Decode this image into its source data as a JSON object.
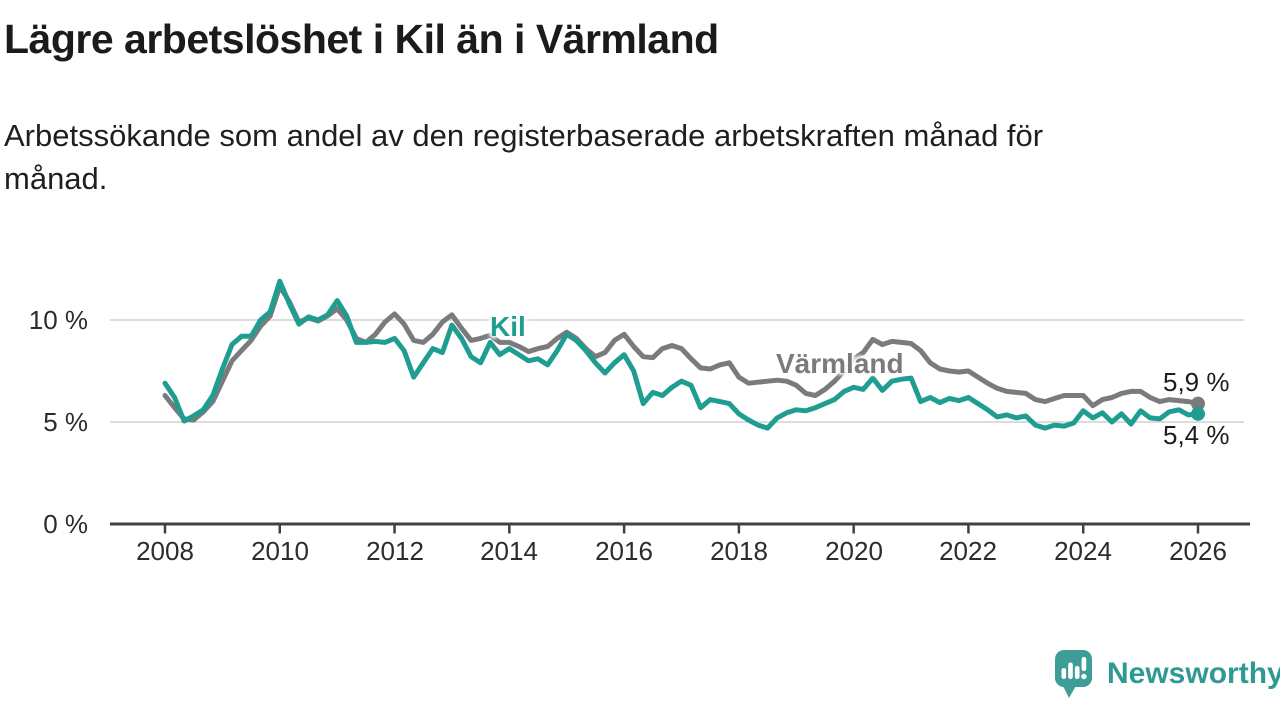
{
  "header": {
    "title": "Lägre arbetslöshet i Kil än i Värmland",
    "subtitle": "Arbetssökande som andel av den registerbaserade arbetskraften månad för månad.",
    "subtitle_lines": [
      "Arbetssökande som andel av den registerbaserade arbetskraften månad för",
      "månad."
    ]
  },
  "chart_data": {
    "type": "line",
    "title": "Lägre arbetslöshet i Kil än i Värmland",
    "xlabel": "",
    "ylabel": "",
    "unit": "%",
    "grid": "horizontal-only",
    "legend_position": "inline-labels",
    "x_axis": {
      "ticks": [
        2008,
        2010,
        2012,
        2014,
        2016,
        2018,
        2020,
        2022,
        2024,
        2026
      ],
      "tick_labels": [
        "2008",
        "2010",
        "2012",
        "2014",
        "2016",
        "2018",
        "2020",
        "2022",
        "2024",
        "2026"
      ],
      "range": [
        2007.0,
        2026.9
      ]
    },
    "y_axis": {
      "ticks": [
        0,
        5,
        10
      ],
      "tick_labels": [
        "0 %",
        "5 %",
        "10 %"
      ],
      "gridline_values": [
        5,
        10
      ],
      "range": [
        0,
        13.4
      ]
    },
    "x_start": 2008.0,
    "x_step": 0.1666667,
    "x_end": 2026.0,
    "series": [
      {
        "name": "Värmland",
        "color": "#7b7b7d",
        "end_label": "5,9 %",
        "end_value": 5.9,
        "values": [
          6.3,
          5.7,
          5.15,
          5.1,
          5.5,
          6.0,
          7.0,
          8.0,
          8.5,
          9.0,
          9.7,
          10.2,
          11.65,
          10.9,
          9.9,
          10.1,
          9.95,
          10.2,
          10.55,
          10.0,
          9.1,
          8.9,
          9.3,
          9.9,
          10.3,
          9.8,
          9.0,
          8.9,
          9.3,
          9.9,
          10.25,
          9.6,
          9.0,
          9.1,
          9.25,
          8.9,
          8.9,
          8.7,
          8.45,
          8.6,
          8.7,
          9.1,
          9.4,
          9.1,
          8.6,
          8.2,
          8.4,
          9.0,
          9.3,
          8.7,
          8.2,
          8.15,
          8.6,
          8.75,
          8.6,
          8.1,
          7.65,
          7.6,
          7.8,
          7.9,
          7.2,
          6.9,
          6.95,
          7.0,
          7.05,
          7.0,
          6.8,
          6.4,
          6.3,
          6.6,
          7.0,
          7.5,
          8.1,
          8.4,
          9.05,
          8.8,
          8.95,
          8.9,
          8.85,
          8.5,
          7.9,
          7.6,
          7.5,
          7.45,
          7.5,
          7.2,
          6.9,
          6.65,
          6.5,
          6.45,
          6.4,
          6.1,
          6.0,
          6.15,
          6.3,
          6.3,
          6.3,
          5.8,
          6.1,
          6.2,
          6.4,
          6.5,
          6.5,
          6.2,
          6.0,
          6.1,
          6.05,
          6.0,
          5.9
        ]
      },
      {
        "name": "Kil",
        "color": "#1f9d90",
        "end_label": "5,4 %",
        "end_value": 5.4,
        "values": [
          6.9,
          6.2,
          5.05,
          5.3,
          5.6,
          6.3,
          7.6,
          8.8,
          9.2,
          9.2,
          10.0,
          10.4,
          11.9,
          10.8,
          9.8,
          10.15,
          10.0,
          10.25,
          10.95,
          10.2,
          8.9,
          8.9,
          8.95,
          8.9,
          9.1,
          8.5,
          7.2,
          7.9,
          8.6,
          8.4,
          9.75,
          9.1,
          8.2,
          7.9,
          8.9,
          8.3,
          8.6,
          8.3,
          8.0,
          8.1,
          7.8,
          8.5,
          9.3,
          9.0,
          8.5,
          7.9,
          7.4,
          7.9,
          8.3,
          7.5,
          5.9,
          6.45,
          6.3,
          6.7,
          7.0,
          6.8,
          5.7,
          6.1,
          6.0,
          5.9,
          5.4,
          5.1,
          4.85,
          4.7,
          5.2,
          5.45,
          5.6,
          5.55,
          5.7,
          5.9,
          6.1,
          6.5,
          6.7,
          6.6,
          7.15,
          6.55,
          7.0,
          7.1,
          7.15,
          6.0,
          6.2,
          5.95,
          6.15,
          6.05,
          6.2,
          5.9,
          5.6,
          5.25,
          5.35,
          5.2,
          5.3,
          4.85,
          4.7,
          4.85,
          4.8,
          4.95,
          5.55,
          5.2,
          5.45,
          5.0,
          5.4,
          4.9,
          5.55,
          5.2,
          5.15,
          5.5,
          5.6,
          5.35,
          5.4
        ]
      }
    ],
    "style": {
      "grid_color": "#dcdcdc",
      "axis_color": "#404040",
      "line_width": 5
    }
  },
  "footer": {
    "brand": "Newsworthy",
    "brand_color": "#2e9a93",
    "brand_icon": "speech-bubble-bar-chart-icon"
  }
}
